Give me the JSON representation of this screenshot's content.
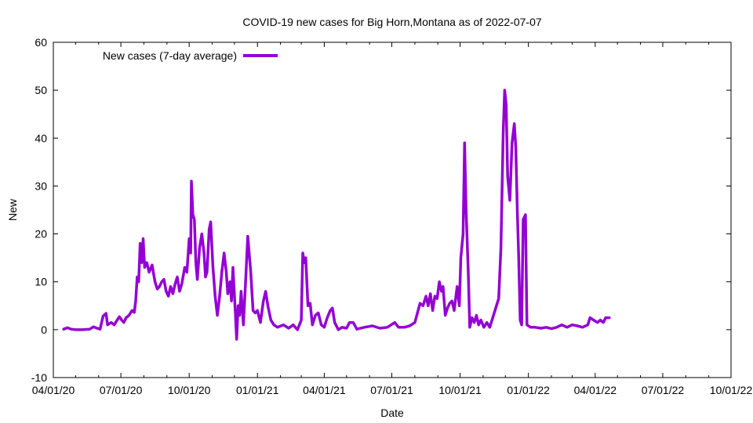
{
  "chart_data": {
    "type": "line",
    "title": "COVID-19 new cases for Big Horn,Montana as of 2022-07-07",
    "xlabel": "Date",
    "ylabel": "New",
    "ylim": [
      -10,
      60
    ],
    "xlim": [
      "2020-04-01",
      "2022-10-01"
    ],
    "y_ticks": [
      -10,
      0,
      10,
      20,
      30,
      40,
      50,
      60
    ],
    "y_tick_labels": [
      "-10",
      "0",
      "10",
      "20",
      "30",
      "40",
      "50",
      "60"
    ],
    "x_ticks": [
      "2020-04-01",
      "2020-07-01",
      "2020-10-01",
      "2021-01-01",
      "2021-04-01",
      "2021-07-01",
      "2021-10-01",
      "2022-01-01",
      "2022-04-01",
      "2022-07-01",
      "2022-10-01"
    ],
    "x_tick_labels": [
      "04/01/20",
      "07/01/20",
      "10/01/20",
      "01/01/21",
      "04/01/21",
      "07/01/21",
      "10/01/21",
      "01/01/22",
      "04/01/22",
      "07/01/22",
      "10/01/22"
    ],
    "grid": false,
    "legend_position": "top-left",
    "series": [
      {
        "name": "New cases (7-day average)",
        "color": "#9400d3",
        "points": [
          [
            "2020-04-15",
            0.1
          ],
          [
            "2020-04-20",
            0.4
          ],
          [
            "2020-04-25",
            0.1
          ],
          [
            "2020-05-01",
            0.0
          ],
          [
            "2020-05-10",
            0.0
          ],
          [
            "2020-05-20",
            0.1
          ],
          [
            "2020-05-25",
            0.6
          ],
          [
            "2020-05-30",
            0.3
          ],
          [
            "2020-06-03",
            0.1
          ],
          [
            "2020-06-07",
            2.8
          ],
          [
            "2020-06-11",
            3.4
          ],
          [
            "2020-06-13",
            1.0
          ],
          [
            "2020-06-18",
            1.5
          ],
          [
            "2020-06-22",
            1.0
          ],
          [
            "2020-06-26",
            2.0
          ],
          [
            "2020-06-29",
            2.7
          ],
          [
            "2020-07-02",
            2.0
          ],
          [
            "2020-07-05",
            1.5
          ],
          [
            "2020-07-08",
            2.5
          ],
          [
            "2020-07-12",
            3.0
          ],
          [
            "2020-07-16",
            4.0
          ],
          [
            "2020-07-19",
            3.6
          ],
          [
            "2020-07-21",
            6.0
          ],
          [
            "2020-07-23",
            11.0
          ],
          [
            "2020-07-25",
            10.0
          ],
          [
            "2020-07-27",
            18.0
          ],
          [
            "2020-07-29",
            14.0
          ],
          [
            "2020-07-31",
            19.0
          ],
          [
            "2020-08-02",
            13.0
          ],
          [
            "2020-08-05",
            14.0
          ],
          [
            "2020-08-08",
            12.0
          ],
          [
            "2020-08-12",
            13.5
          ],
          [
            "2020-08-16",
            10.0
          ],
          [
            "2020-08-19",
            8.5
          ],
          [
            "2020-08-22",
            9.0
          ],
          [
            "2020-08-25",
            10.0
          ],
          [
            "2020-08-28",
            10.5
          ],
          [
            "2020-08-31",
            8.0
          ],
          [
            "2020-09-03",
            7.0
          ],
          [
            "2020-09-06",
            9.0
          ],
          [
            "2020-09-09",
            7.5
          ],
          [
            "2020-09-12",
            9.5
          ],
          [
            "2020-09-15",
            11.0
          ],
          [
            "2020-09-18",
            8.0
          ],
          [
            "2020-09-21",
            9.5
          ],
          [
            "2020-09-25",
            13.0
          ],
          [
            "2020-09-28",
            12.0
          ],
          [
            "2020-10-01",
            19.0
          ],
          [
            "2020-10-03",
            16.0
          ],
          [
            "2020-10-04",
            31.0
          ],
          [
            "2020-10-06",
            24.0
          ],
          [
            "2020-10-08",
            23.0
          ],
          [
            "2020-10-10",
            14.0
          ],
          [
            "2020-10-12",
            10.5
          ],
          [
            "2020-10-15",
            17.0
          ],
          [
            "2020-10-18",
            20.0
          ],
          [
            "2020-10-21",
            16.0
          ],
          [
            "2020-10-23",
            11.0
          ],
          [
            "2020-10-25",
            12.0
          ],
          [
            "2020-10-28",
            21.0
          ],
          [
            "2020-10-30",
            22.5
          ],
          [
            "2020-11-02",
            13.0
          ],
          [
            "2020-11-05",
            7.0
          ],
          [
            "2020-11-08",
            3.0
          ],
          [
            "2020-11-11",
            7.0
          ],
          [
            "2020-11-14",
            12.0
          ],
          [
            "2020-11-17",
            16.0
          ],
          [
            "2020-11-20",
            12.0
          ],
          [
            "2020-11-22",
            7.5
          ],
          [
            "2020-11-25",
            10.0
          ],
          [
            "2020-11-27",
            6.0
          ],
          [
            "2020-11-29",
            13.0
          ],
          [
            "2020-12-02",
            4.0
          ],
          [
            "2020-12-04",
            -2.0
          ],
          [
            "2020-12-06",
            5.0
          ],
          [
            "2020-12-08",
            3.0
          ],
          [
            "2020-12-10",
            8.0
          ],
          [
            "2020-12-13",
            1.0
          ],
          [
            "2020-12-16",
            10.0
          ],
          [
            "2020-12-19",
            19.5
          ],
          [
            "2020-12-23",
            12.0
          ],
          [
            "2020-12-26",
            4.0
          ],
          [
            "2020-12-29",
            3.5
          ],
          [
            "2021-01-01",
            4.0
          ],
          [
            "2021-01-05",
            1.5
          ],
          [
            "2021-01-09",
            6.0
          ],
          [
            "2021-01-12",
            8.0
          ],
          [
            "2021-01-15",
            5.0
          ],
          [
            "2021-01-19",
            2.0
          ],
          [
            "2021-01-23",
            1.0
          ],
          [
            "2021-01-28",
            0.5
          ],
          [
            "2021-02-05",
            1.0
          ],
          [
            "2021-02-12",
            0.3
          ],
          [
            "2021-02-18",
            1.0
          ],
          [
            "2021-02-24",
            0.0
          ],
          [
            "2021-03-01",
            2.0
          ],
          [
            "2021-03-03",
            16.0
          ],
          [
            "2021-03-05",
            14.0
          ],
          [
            "2021-03-07",
            15.0
          ],
          [
            "2021-03-10",
            5.0
          ],
          [
            "2021-03-13",
            5.5
          ],
          [
            "2021-03-16",
            1.0
          ],
          [
            "2021-03-20",
            3.0
          ],
          [
            "2021-03-24",
            3.5
          ],
          [
            "2021-03-28",
            1.0
          ],
          [
            "2021-04-01",
            0.5
          ],
          [
            "2021-04-05",
            2.5
          ],
          [
            "2021-04-09",
            4.0
          ],
          [
            "2021-04-12",
            4.5
          ],
          [
            "2021-04-15",
            1.5
          ],
          [
            "2021-04-20",
            0.0
          ],
          [
            "2021-04-25",
            0.5
          ],
          [
            "2021-05-01",
            0.3
          ],
          [
            "2021-05-05",
            1.5
          ],
          [
            "2021-05-10",
            1.5
          ],
          [
            "2021-05-15",
            0.1
          ],
          [
            "2021-05-25",
            0.5
          ],
          [
            "2021-06-05",
            0.8
          ],
          [
            "2021-06-15",
            0.3
          ],
          [
            "2021-06-25",
            0.5
          ],
          [
            "2021-07-05",
            1.5
          ],
          [
            "2021-07-10",
            0.5
          ],
          [
            "2021-07-18",
            0.5
          ],
          [
            "2021-07-25",
            0.8
          ],
          [
            "2021-08-01",
            1.5
          ],
          [
            "2021-08-08",
            5.5
          ],
          [
            "2021-08-12",
            5.0
          ],
          [
            "2021-08-16",
            7.0
          ],
          [
            "2021-08-19",
            5.0
          ],
          [
            "2021-08-22",
            7.5
          ],
          [
            "2021-08-25",
            4.0
          ],
          [
            "2021-08-28",
            7.0
          ],
          [
            "2021-08-31",
            6.5
          ],
          [
            "2021-09-03",
            10.0
          ],
          [
            "2021-09-06",
            8.0
          ],
          [
            "2021-09-08",
            9.0
          ],
          [
            "2021-09-11",
            3.0
          ],
          [
            "2021-09-14",
            4.5
          ],
          [
            "2021-09-17",
            5.5
          ],
          [
            "2021-09-20",
            6.0
          ],
          [
            "2021-09-23",
            4.0
          ],
          [
            "2021-09-27",
            9.0
          ],
          [
            "2021-09-30",
            5.0
          ],
          [
            "2021-10-02",
            15.0
          ],
          [
            "2021-10-05",
            20.0
          ],
          [
            "2021-10-07",
            39.0
          ],
          [
            "2021-10-09",
            25.0
          ],
          [
            "2021-10-12",
            12.0
          ],
          [
            "2021-10-14",
            0.5
          ],
          [
            "2021-10-17",
            2.5
          ],
          [
            "2021-10-20",
            1.5
          ],
          [
            "2021-10-23",
            3.0
          ],
          [
            "2021-10-26",
            1.0
          ],
          [
            "2021-10-29",
            2.0
          ],
          [
            "2021-11-02",
            0.5
          ],
          [
            "2021-11-06",
            1.5
          ],
          [
            "2021-11-10",
            0.5
          ],
          [
            "2021-11-14",
            2.5
          ],
          [
            "2021-11-18",
            4.5
          ],
          [
            "2021-11-22",
            6.5
          ],
          [
            "2021-11-25",
            17.0
          ],
          [
            "2021-11-28",
            41.0
          ],
          [
            "2021-11-30",
            50.0
          ],
          [
            "2021-12-02",
            47.0
          ],
          [
            "2021-12-04",
            32.0
          ],
          [
            "2021-12-07",
            27.0
          ],
          [
            "2021-12-10",
            39.0
          ],
          [
            "2021-12-13",
            43.0
          ],
          [
            "2021-12-15",
            38.0
          ],
          [
            "2021-12-17",
            25.0
          ],
          [
            "2021-12-19",
            15.0
          ],
          [
            "2021-12-21",
            2.0
          ],
          [
            "2021-12-23",
            1.0
          ],
          [
            "2021-12-25",
            23.0
          ],
          [
            "2021-12-28",
            24.0
          ],
          [
            "2021-12-30",
            1.0
          ],
          [
            "2022-01-04",
            0.5
          ],
          [
            "2022-01-10",
            0.5
          ],
          [
            "2022-01-18",
            0.3
          ],
          [
            "2022-01-25",
            0.5
          ],
          [
            "2022-02-01",
            0.2
          ],
          [
            "2022-02-08",
            0.5
          ],
          [
            "2022-02-15",
            1.0
          ],
          [
            "2022-02-22",
            0.5
          ],
          [
            "2022-03-01",
            1.0
          ],
          [
            "2022-03-08",
            0.8
          ],
          [
            "2022-03-15",
            0.5
          ],
          [
            "2022-03-22",
            1.0
          ],
          [
            "2022-03-25",
            2.5
          ],
          [
            "2022-03-30",
            2.0
          ],
          [
            "2022-04-04",
            1.5
          ],
          [
            "2022-04-08",
            2.0
          ],
          [
            "2022-04-12",
            1.5
          ],
          [
            "2022-04-15",
            2.5
          ],
          [
            "2022-04-20",
            2.5
          ]
        ]
      }
    ]
  }
}
